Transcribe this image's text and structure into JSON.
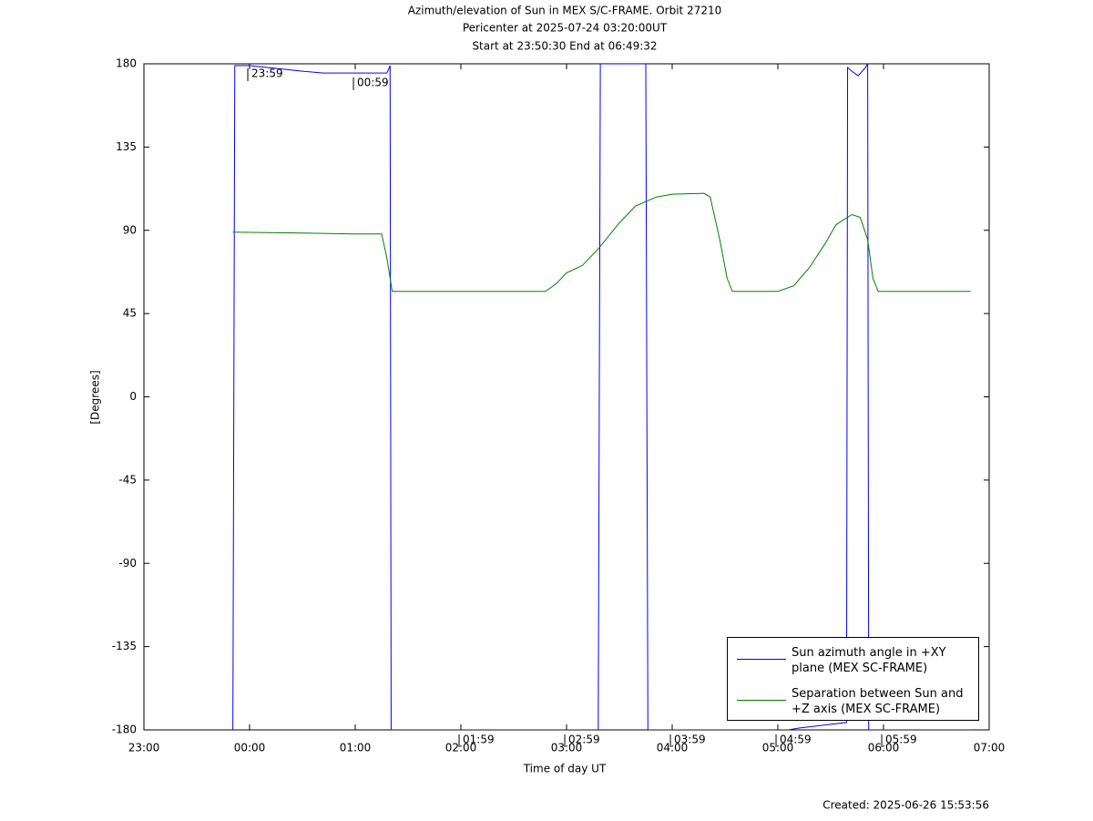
{
  "chart_data": {
    "type": "line",
    "title": "Azimuth/elevation of Sun in MEX S/C-FRAME.  Orbit 27210",
    "subtitle": "Pericenter at 2025-07-24 03:20:00UT",
    "subtitle2": "Start at 23:50:30 End at 06:49:32",
    "xlabel": "Time of day UT",
    "ylabel": "[Degrees]",
    "footer": "Created: 2025-06-26 15:53:56",
    "xlim": [
      23,
      31
    ],
    "ylim": [
      -180,
      180
    ],
    "xticks": [
      {
        "value": 23,
        "label": "23:00"
      },
      {
        "value": 24,
        "label": "00:00"
      },
      {
        "value": 25,
        "label": "01:00"
      },
      {
        "value": 26,
        "label": "02:00"
      },
      {
        "value": 27,
        "label": "03:00"
      },
      {
        "value": 28,
        "label": "04:00"
      },
      {
        "value": 29,
        "label": "05:00"
      },
      {
        "value": 30,
        "label": "06:00"
      },
      {
        "value": 31,
        "label": "07:00"
      }
    ],
    "yticks": [
      -180,
      -135,
      -90,
      -45,
      0,
      45,
      90,
      135,
      180
    ],
    "series": [
      {
        "name": "Sun azimuth angle in +XY plane (MEX SC-FRAME)",
        "color": "#0000ff",
        "x": [
          23.842,
          23.86,
          24.0,
          24.5,
          24.7,
          25.3,
          25.33,
          25.34,
          27.3,
          27.32,
          27.75,
          27.77,
          29.1,
          29.2,
          29.5,
          29.65,
          29.66,
          29.7,
          29.76,
          29.83,
          29.85,
          29.86,
          30.826
        ],
        "values": [
          -180,
          179,
          179,
          176,
          175,
          175,
          179,
          -180,
          -180,
          180,
          180,
          -180,
          -180,
          -179,
          -177,
          -176,
          178,
          176,
          173.5,
          178,
          180,
          -180,
          -180
        ]
      },
      {
        "name": "Separation between Sun and +Z axis (MEX SC-FRAME)",
        "color": "#008000",
        "x": [
          23.842,
          24.5,
          25.0,
          25.25,
          25.3,
          25.35,
          26.0,
          26.8,
          26.9,
          27.0,
          27.15,
          27.3,
          27.5,
          27.65,
          27.85,
          28.0,
          28.3,
          28.36,
          28.45,
          28.52,
          28.57,
          29.0,
          29.15,
          29.3,
          29.45,
          29.55,
          29.7,
          29.78,
          29.85,
          29.9,
          29.95,
          30.5,
          30.826
        ],
        "values": [
          89,
          88.5,
          88,
          88,
          75,
          57,
          57,
          57,
          61,
          67,
          71,
          80,
          94,
          103,
          108,
          109.5,
          110,
          108,
          85,
          64,
          57,
          57,
          60,
          70,
          83,
          93,
          98.5,
          97,
          85,
          64,
          57,
          57,
          57
        ]
      }
    ],
    "annotations": [
      {
        "label": "23:59",
        "x": 23.983,
        "y": 174.6
      },
      {
        "label": "00:59",
        "x": 24.983,
        "y": 169.7
      },
      {
        "label": "01:59",
        "x": 25.983,
        "y": -185.4
      },
      {
        "label": "02:59",
        "x": 26.983,
        "y": -185.4
      },
      {
        "label": "03:59",
        "x": 27.983,
        "y": -185.4
      },
      {
        "label": "04:59",
        "x": 28.983,
        "y": -185.4
      },
      {
        "label": "05:59",
        "x": 29.983,
        "y": -185.4
      }
    ]
  }
}
